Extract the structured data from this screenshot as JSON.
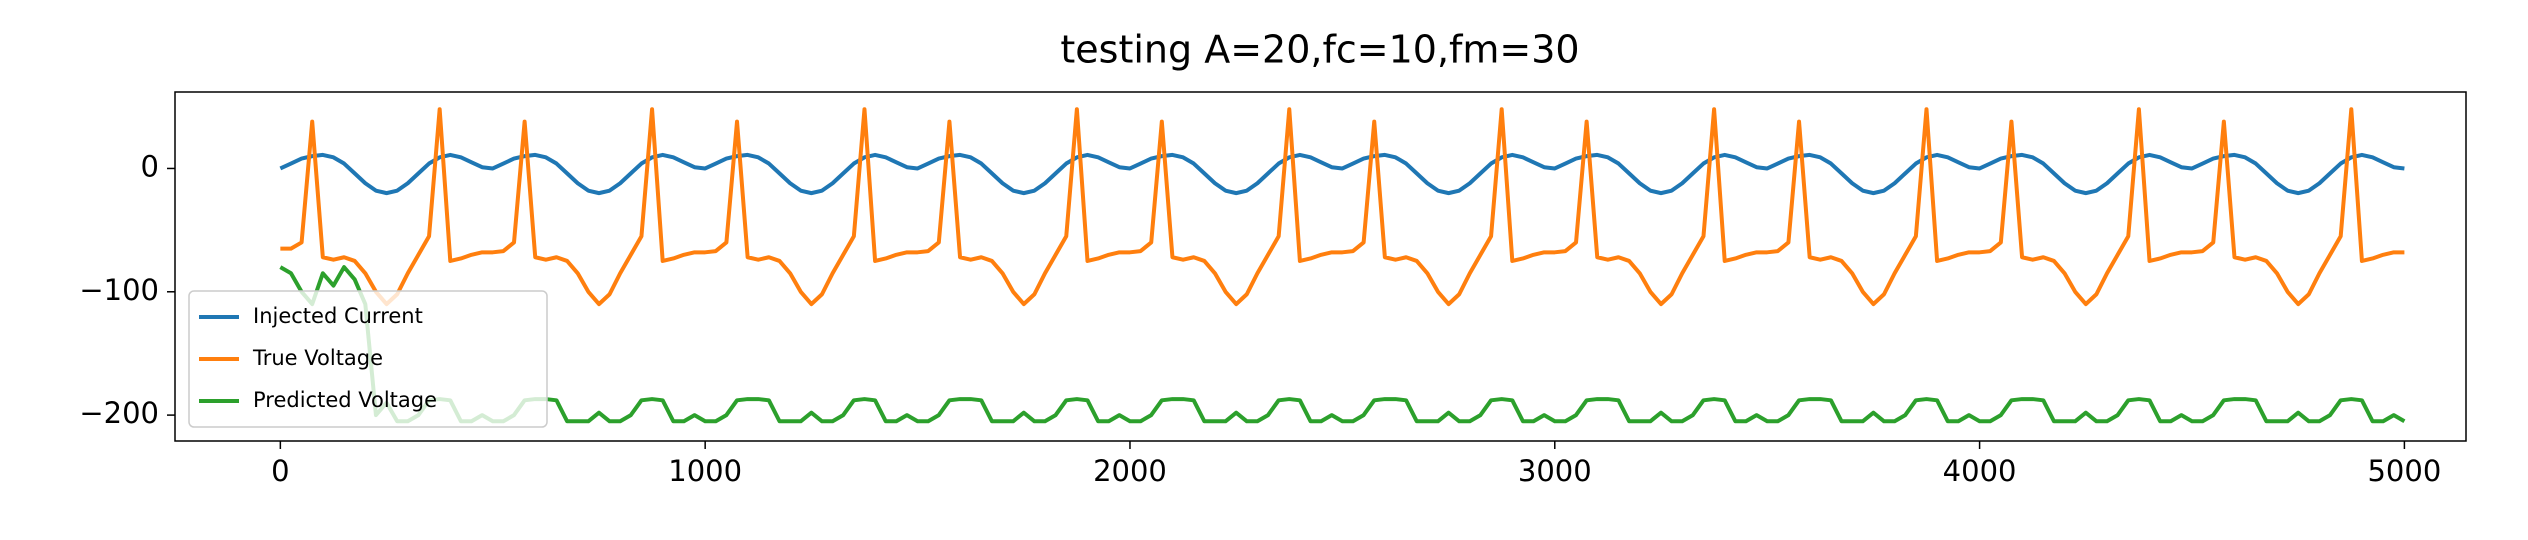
{
  "chart_data": {
    "type": "line",
    "title": "testing A=20,fc=10,fm=30",
    "x": [
      0,
      25,
      50,
      75,
      100,
      125,
      150,
      175,
      200,
      225,
      250,
      275,
      300,
      325,
      350,
      375,
      400,
      425,
      450,
      475,
      500,
      525,
      550,
      575,
      600,
      625,
      650,
      675,
      700,
      725,
      750,
      775,
      800,
      825,
      850,
      875,
      900,
      925,
      950,
      975,
      1000,
      1025,
      1050,
      1075,
      1100,
      1125,
      1150,
      1175,
      1200,
      1225,
      1250,
      1275,
      1300,
      1325,
      1350,
      1375,
      1400,
      1425,
      1450,
      1475,
      1500,
      1525,
      1550,
      1575,
      1600,
      1625,
      1650,
      1675,
      1700,
      1725,
      1750,
      1775,
      1800,
      1825,
      1850,
      1875,
      1900,
      1925,
      1950,
      1975,
      2000,
      2025,
      2050,
      2075,
      2100,
      2125,
      2150,
      2175,
      2200,
      2225,
      2250,
      2275,
      2300,
      2325,
      2350,
      2375,
      2400,
      2425,
      2450,
      2475,
      2500,
      2525,
      2550,
      2575,
      2600,
      2625,
      2650,
      2675,
      2700,
      2725,
      2750,
      2775,
      2800,
      2825,
      2850,
      2875,
      2900,
      2925,
      2950,
      2975,
      3000,
      3025,
      3050,
      3075,
      3100,
      3125,
      3150,
      3175,
      3200,
      3225,
      3250,
      3275,
      3300,
      3325,
      3350,
      3375,
      3400,
      3425,
      3450,
      3475,
      3500,
      3525,
      3550,
      3575,
      3600,
      3625,
      3650,
      3675,
      3700,
      3725,
      3750,
      3775,
      3800,
      3825,
      3850,
      3875,
      3900,
      3925,
      3950,
      3975,
      4000,
      4025,
      4050,
      4075,
      4100,
      4125,
      4150,
      4175,
      4200,
      4225,
      4250,
      4275,
      4300,
      4325,
      4350,
      4375,
      4400,
      4425,
      4450,
      4475,
      4500,
      4525,
      4550,
      4575,
      4600,
      4625,
      4650,
      4675,
      4700,
      4725,
      4750,
      4775,
      4800,
      4825,
      4850,
      4875,
      4900,
      4925,
      4950,
      4975,
      5000
    ],
    "series": [
      {
        "name": "Injected Current",
        "color": "#1f77b4",
        "values": [
          0,
          4,
          8,
          10,
          11,
          9,
          4,
          -4,
          -12,
          -18,
          -20,
          -18,
          -12,
          -4,
          4,
          9,
          11,
          9,
          5,
          1,
          0,
          4,
          8,
          10,
          11,
          9,
          4,
          -4,
          -12,
          -18,
          -20,
          -18,
          -12,
          -4,
          4,
          9,
          11,
          9,
          5,
          1,
          0,
          4,
          8,
          10,
          11,
          9,
          4,
          -4,
          -12,
          -18,
          -20,
          -18,
          -12,
          -4,
          4,
          9,
          11,
          9,
          5,
          1,
          0,
          4,
          8,
          10,
          11,
          9,
          4,
          -4,
          -12,
          -18,
          -20,
          -18,
          -12,
          -4,
          4,
          9,
          11,
          9,
          5,
          1,
          0,
          4,
          8,
          10,
          11,
          9,
          4,
          -4,
          -12,
          -18,
          -20,
          -18,
          -12,
          -4,
          4,
          9,
          11,
          9,
          5,
          1,
          0,
          4,
          8,
          10,
          11,
          9,
          4,
          -4,
          -12,
          -18,
          -20,
          -18,
          -12,
          -4,
          4,
          9,
          11,
          9,
          5,
          1,
          0,
          4,
          8,
          10,
          11,
          9,
          4,
          -4,
          -12,
          -18,
          -20,
          -18,
          -12,
          -4,
          4,
          9,
          11,
          9,
          5,
          1,
          0,
          4,
          8,
          10,
          11,
          9,
          4,
          -4,
          -12,
          -18,
          -20,
          -18,
          -12,
          -4,
          4,
          9,
          11,
          9,
          5,
          1,
          0,
          4,
          8,
          10,
          11,
          9,
          4,
          -4,
          -12,
          -18,
          -20,
          -18,
          -12,
          -4,
          4,
          9,
          11,
          9,
          5,
          1,
          0,
          4,
          8,
          10,
          11,
          9,
          4,
          -4,
          -12,
          -18,
          -20,
          -18,
          -12,
          -4,
          4,
          9,
          11,
          9,
          5,
          1,
          0
        ]
      },
      {
        "name": "True Voltage",
        "color": "#ff7f0e",
        "values": [
          -65,
          -65,
          -60,
          38,
          -72,
          -74,
          -72,
          -75,
          -85,
          -100,
          -110,
          -102,
          -85,
          -70,
          -55,
          48,
          -75,
          -73,
          -70,
          -68,
          -68,
          -67,
          -60,
          38,
          -72,
          -74,
          -72,
          -75,
          -85,
          -100,
          -110,
          -102,
          -85,
          -70,
          -55,
          48,
          -75,
          -73,
          -70,
          -68,
          -68,
          -67,
          -60,
          38,
          -72,
          -74,
          -72,
          -75,
          -85,
          -100,
          -110,
          -102,
          -85,
          -70,
          -55,
          48,
          -75,
          -73,
          -70,
          -68,
          -68,
          -67,
          -60,
          38,
          -72,
          -74,
          -72,
          -75,
          -85,
          -100,
          -110,
          -102,
          -85,
          -70,
          -55,
          48,
          -75,
          -73,
          -70,
          -68,
          -68,
          -67,
          -60,
          38,
          -72,
          -74,
          -72,
          -75,
          -85,
          -100,
          -110,
          -102,
          -85,
          -70,
          -55,
          48,
          -75,
          -73,
          -70,
          -68,
          -68,
          -67,
          -60,
          38,
          -72,
          -74,
          -72,
          -75,
          -85,
          -100,
          -110,
          -102,
          -85,
          -70,
          -55,
          48,
          -75,
          -73,
          -70,
          -68,
          -68,
          -67,
          -60,
          38,
          -72,
          -74,
          -72,
          -75,
          -85,
          -100,
          -110,
          -102,
          -85,
          -70,
          -55,
          48,
          -75,
          -73,
          -70,
          -68,
          -68,
          -67,
          -60,
          38,
          -72,
          -74,
          -72,
          -75,
          -85,
          -100,
          -110,
          -102,
          -85,
          -70,
          -55,
          48,
          -75,
          -73,
          -70,
          -68,
          -68,
          -67,
          -60,
          38,
          -72,
          -74,
          -72,
          -75,
          -85,
          -100,
          -110,
          -102,
          -85,
          -70,
          -55,
          48,
          -75,
          -73,
          -70,
          -68,
          -68,
          -67,
          -60,
          38,
          -72,
          -74,
          -72,
          -75,
          -85,
          -100,
          -110,
          -102,
          -85,
          -70,
          -55,
          48,
          -75,
          -73,
          -70,
          -68,
          -68
        ]
      },
      {
        "name": "Predicted Voltage",
        "color": "#2ca02c",
        "values": [
          -80,
          -85,
          -100,
          -110,
          -85,
          -95,
          -80,
          -90,
          -110,
          -200,
          -190,
          -205,
          -205,
          -200,
          -188,
          -187,
          -188,
          -205,
          -205,
          -200,
          -205,
          -205,
          -200,
          -188,
          -187,
          -187,
          -188,
          -205,
          -205,
          -205,
          -198,
          -205,
          -205,
          -200,
          -188,
          -187,
          -188,
          -205,
          -205,
          -200,
          -205,
          -205,
          -200,
          -188,
          -187,
          -187,
          -188,
          -205,
          -205,
          -205,
          -198,
          -205,
          -205,
          -200,
          -188,
          -187,
          -188,
          -205,
          -205,
          -200,
          -205,
          -205,
          -200,
          -188,
          -187,
          -187,
          -188,
          -205,
          -205,
          -205,
          -198,
          -205,
          -205,
          -200,
          -188,
          -187,
          -188,
          -205,
          -205,
          -200,
          -205,
          -205,
          -200,
          -188,
          -187,
          -187,
          -188,
          -205,
          -205,
          -205,
          -198,
          -205,
          -205,
          -200,
          -188,
          -187,
          -188,
          -205,
          -205,
          -200,
          -205,
          -205,
          -200,
          -188,
          -187,
          -187,
          -188,
          -205,
          -205,
          -205,
          -198,
          -205,
          -205,
          -200,
          -188,
          -187,
          -188,
          -205,
          -205,
          -200,
          -205,
          -205,
          -200,
          -188,
          -187,
          -187,
          -188,
          -205,
          -205,
          -205,
          -198,
          -205,
          -205,
          -200,
          -188,
          -187,
          -188,
          -205,
          -205,
          -200,
          -205,
          -205,
          -200,
          -188,
          -187,
          -187,
          -188,
          -205,
          -205,
          -205,
          -198,
          -205,
          -205,
          -200,
          -188,
          -187,
          -188,
          -205,
          -205,
          -200,
          -205,
          -205,
          -200,
          -188,
          -187,
          -187,
          -188,
          -205,
          -205,
          -205,
          -198,
          -205,
          -205,
          -200,
          -188,
          -187,
          -188,
          -205,
          -205,
          -200,
          -205,
          -205,
          -200,
          -188,
          -187,
          -187,
          -188,
          -205,
          -205,
          -205,
          -198,
          -205,
          -205,
          -200,
          -188,
          -187,
          -188,
          -205,
          -205,
          -200,
          -205
        ]
      }
    ],
    "xlim": [
      -248,
      5145
    ],
    "ylim": [
      -221,
      62
    ],
    "xticks": [
      0,
      1000,
      2000,
      3000,
      4000,
      5000
    ],
    "yticks": [
      {
        "value": -200,
        "label": "−200"
      },
      {
        "value": -100,
        "label": "−100"
      },
      0
    ],
    "legend": "lower left"
  }
}
